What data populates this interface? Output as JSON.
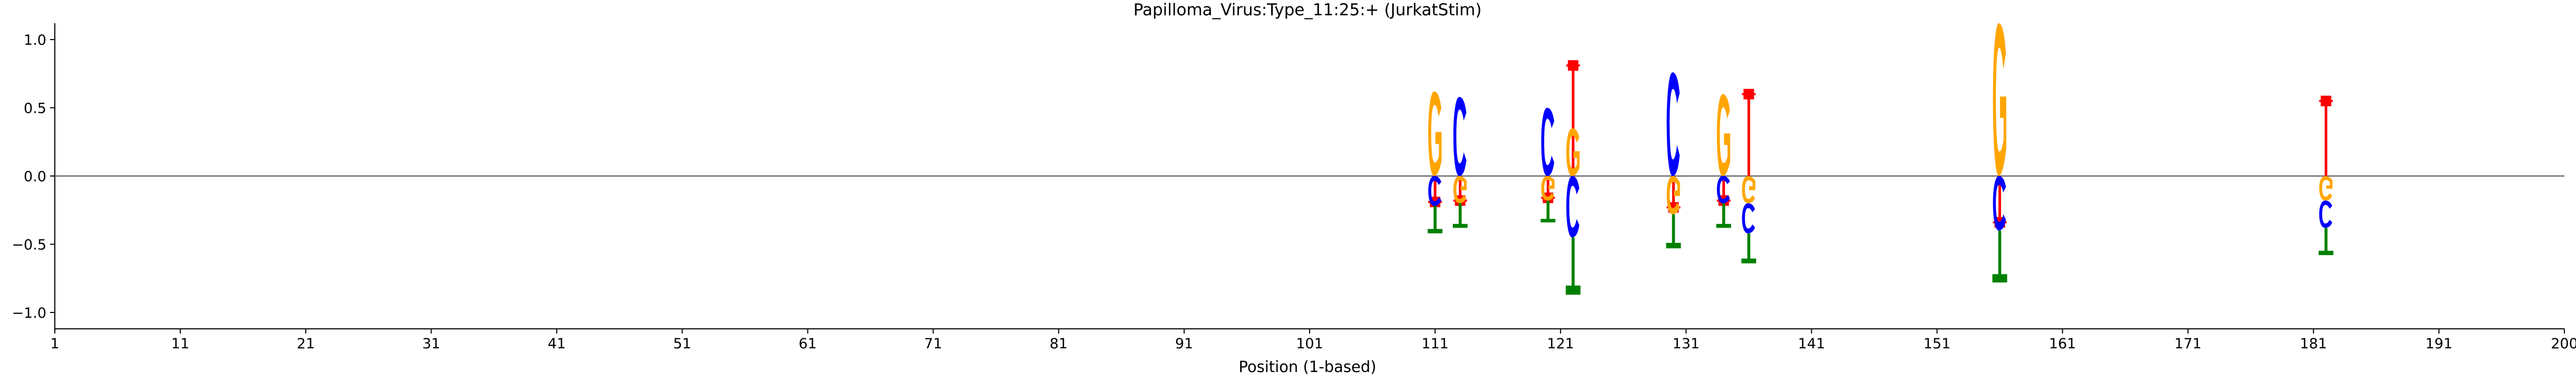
{
  "chart_data": {
    "type": "sequence-logo",
    "title": "Papilloma_Virus:Type_11:25:+  (JurkatStim)",
    "xlabel": "Position (1-based)",
    "ylabel": "",
    "xlim": [
      1,
      201
    ],
    "ylim": [
      -1.12,
      1.12
    ],
    "xticks": [
      1,
      11,
      21,
      31,
      41,
      51,
      61,
      71,
      81,
      91,
      101,
      111,
      121,
      131,
      141,
      151,
      161,
      171,
      181,
      191,
      201
    ],
    "xtick_labels": [
      "1",
      "11",
      "21",
      "31",
      "41",
      "51",
      "61",
      "71",
      "81",
      "91",
      "101",
      "111",
      "121",
      "131",
      "141",
      "151",
      "161",
      "171",
      "181",
      "191",
      "200"
    ],
    "yticks": [
      -1.0,
      -0.5,
      0.0,
      0.5,
      1.0
    ],
    "ytick_labels": [
      "−1.0",
      "−0.5",
      "0.0",
      "0.5",
      "1.0"
    ],
    "zero_line": true,
    "letter_colors": {
      "G": "#FFA500",
      "C": "#0000FF",
      "T": "#008000"
    },
    "marker_color": "#FF0000",
    "positions": [
      {
        "pos": 111,
        "above": [
          {
            "base": "G",
            "height": 0.62
          }
        ],
        "marker": -0.19,
        "below": [
          {
            "base": "C",
            "height": 0.22
          },
          {
            "base": "T",
            "height": 0.2
          }
        ]
      },
      {
        "pos": 113,
        "above": [
          {
            "base": "C",
            "height": 0.58
          }
        ],
        "marker": -0.18,
        "below": [
          {
            "base": "G",
            "height": 0.2
          },
          {
            "base": "T",
            "height": 0.18
          }
        ]
      },
      {
        "pos": 120,
        "above": [
          {
            "base": "C",
            "height": 0.5
          }
        ],
        "marker": -0.16,
        "below": [
          {
            "base": "G",
            "height": 0.18
          },
          {
            "base": "T",
            "height": 0.16
          }
        ]
      },
      {
        "pos": 122,
        "above": [
          {
            "base": "G",
            "height": 0.35
          }
        ],
        "marker": 0.81,
        "below": [
          {
            "base": "C",
            "height": 0.45
          },
          {
            "base": "T",
            "height": 0.42
          }
        ]
      },
      {
        "pos": 130,
        "above": [
          {
            "base": "C",
            "height": 0.76
          }
        ],
        "marker": -0.23,
        "below": [
          {
            "base": "G",
            "height": 0.28
          },
          {
            "base": "T",
            "height": 0.25
          }
        ]
      },
      {
        "pos": 134,
        "above": [
          {
            "base": "G",
            "height": 0.6
          }
        ],
        "marker": -0.18,
        "below": [
          {
            "base": "C",
            "height": 0.2
          },
          {
            "base": "T",
            "height": 0.18
          }
        ]
      },
      {
        "pos": 136,
        "above": [],
        "marker": 0.6,
        "below": [
          {
            "base": "G",
            "height": 0.2
          },
          {
            "base": "C",
            "height": 0.22
          },
          {
            "base": "T",
            "height": 0.22
          }
        ]
      },
      {
        "pos": 156,
        "above": [
          {
            "base": "G",
            "height": 1.12
          }
        ],
        "marker": -0.34,
        "below": [
          {
            "base": "C",
            "height": 0.4
          },
          {
            "base": "T",
            "height": 0.38
          }
        ]
      },
      {
        "pos": 182,
        "above": [],
        "marker": 0.55,
        "below": [
          {
            "base": "G",
            "height": 0.18
          },
          {
            "base": "C",
            "height": 0.2
          },
          {
            "base": "T",
            "height": 0.2
          }
        ]
      }
    ]
  }
}
